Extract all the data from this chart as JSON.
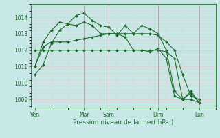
{
  "title": "",
  "xlabel": "Pression niveau de la mer( hPa )",
  "ylabel": "",
  "bg_color": "#c8e8e8",
  "grid_color": "#e8c8c8",
  "line_color": "#1a6b2a",
  "tick_color": "#1a6b2a",
  "ylim": [
    1008.5,
    1014.8
  ],
  "yticks": [
    1009,
    1010,
    1011,
    1012,
    1013,
    1014
  ],
  "xtick_labels": [
    "Ven",
    "Mar",
    "Sam",
    "Dim",
    "Lun"
  ],
  "xtick_positions": [
    0,
    6,
    9,
    15,
    20
  ],
  "xlim": [
    0,
    22
  ],
  "series": [
    [
      1010.5,
      1011.1,
      1012.4,
      1013.2,
      1013.6,
      1013.5,
      1013.7,
      1013.5,
      1013.0,
      1013.0,
      1013.0,
      1012.8,
      1012.0,
      1012.0,
      1011.9,
      1012.1,
      1011.5,
      1009.2,
      1009.0,
      1009.4,
      1008.8
    ],
    [
      1011.0,
      1012.5,
      1013.2,
      1013.7,
      1013.6,
      1014.1,
      1014.25,
      1013.8,
      1013.5,
      1013.4,
      1012.9,
      1013.5,
      1013.0,
      1013.5,
      1013.3,
      1013.0,
      1012.0,
      1009.5,
      1009.0,
      1009.5,
      1008.8
    ],
    [
      1011.0,
      1012.2,
      1012.5,
      1012.5,
      1012.5,
      1012.6,
      1012.7,
      1012.8,
      1012.9,
      1013.0,
      1013.0,
      1013.0,
      1013.0,
      1013.0,
      1013.0,
      1012.9,
      1012.5,
      1012.0,
      1010.5,
      1009.2,
      1009.0
    ],
    [
      1012.0,
      1012.0,
      1012.0,
      1012.0,
      1012.0,
      1012.0,
      1012.0,
      1012.0,
      1012.0,
      1012.0,
      1012.0,
      1012.0,
      1012.0,
      1012.0,
      1012.0,
      1012.0,
      1011.9,
      1011.5,
      1009.0,
      1009.0,
      1008.8
    ]
  ],
  "vlines": [
    6,
    9,
    15,
    20
  ],
  "vline_color": "#888888",
  "n_points": 21
}
